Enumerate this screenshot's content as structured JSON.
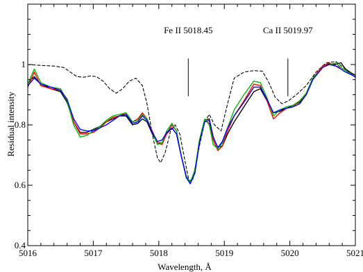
{
  "chart_data": {
    "type": "line",
    "title": "",
    "xlabel": "Wavelength, Å",
    "ylabel": "Residual intensity",
    "xlim": [
      5016,
      5021
    ],
    "ylim": [
      0.4,
      1.2
    ],
    "grid": false,
    "x_ticks": [
      5016,
      5017,
      5018,
      5019,
      5020,
      5021
    ],
    "x_tick_labels": [
      "5016",
      "5017",
      "5018",
      "5019",
      "5020",
      "5021"
    ],
    "y_ticks": [
      0.4,
      0.6,
      0.8,
      1.0
    ],
    "y_tick_labels": [
      "0.4",
      "0.6",
      "0.8",
      "1"
    ],
    "annotations": [
      {
        "text": "Fe II 5018.45",
        "x": 5018.45,
        "y_top": 1.02,
        "y_bottom": 0.895
      },
      {
        "text": "Ca II 5019.97",
        "x": 5019.97,
        "y_top": 1.02,
        "y_bottom": 0.895
      }
    ],
    "series": [
      {
        "color": "#000000",
        "style": "dashed",
        "points": [
          [
            5016,
            1.0
          ],
          [
            5016.2,
            0.997
          ],
          [
            5016.4,
            0.995
          ],
          [
            5016.55,
            0.99
          ],
          [
            5016.65,
            0.975
          ],
          [
            5016.75,
            0.96
          ],
          [
            5016.85,
            0.958
          ],
          [
            5016.95,
            0.962
          ],
          [
            5017.05,
            0.96
          ],
          [
            5017.15,
            0.945
          ],
          [
            5017.25,
            0.92
          ],
          [
            5017.35,
            0.905
          ],
          [
            5017.45,
            0.92
          ],
          [
            5017.55,
            0.945
          ],
          [
            5017.65,
            0.955
          ],
          [
            5017.75,
            0.93
          ],
          [
            5017.82,
            0.87
          ],
          [
            5017.9,
            0.77
          ],
          [
            5017.98,
            0.69
          ],
          [
            5018.03,
            0.675
          ],
          [
            5018.1,
            0.71
          ],
          [
            5018.18,
            0.78
          ],
          [
            5018.25,
            0.8
          ],
          [
            5018.32,
            0.77
          ],
          [
            5018.4,
            0.68
          ],
          [
            5018.46,
            0.615
          ],
          [
            5018.52,
            0.62
          ],
          [
            5018.6,
            0.71
          ],
          [
            5018.7,
            0.81
          ],
          [
            5018.77,
            0.835
          ],
          [
            5018.85,
            0.8
          ],
          [
            5018.95,
            0.78
          ],
          [
            5019.05,
            0.87
          ],
          [
            5019.15,
            0.955
          ],
          [
            5019.3,
            0.975
          ],
          [
            5019.45,
            0.98
          ],
          [
            5019.58,
            0.978
          ],
          [
            5019.68,
            0.94
          ],
          [
            5019.78,
            0.89
          ],
          [
            5019.88,
            0.87
          ],
          [
            5019.98,
            0.88
          ],
          [
            5020.1,
            0.9
          ],
          [
            5020.25,
            0.93
          ],
          [
            5020.4,
            0.975
          ],
          [
            5020.55,
            1.005
          ],
          [
            5020.7,
            1.01
          ],
          [
            5020.82,
            0.99
          ],
          [
            5020.92,
            0.97
          ],
          [
            5021,
            0.96
          ]
        ]
      },
      {
        "color": "#000000",
        "style": "solid",
        "points": [
          [
            5016,
            0.94
          ],
          [
            5016.1,
            0.96
          ],
          [
            5016.2,
            0.935
          ],
          [
            5016.35,
            0.92
          ],
          [
            5016.5,
            0.91
          ],
          [
            5016.6,
            0.875
          ],
          [
            5016.7,
            0.81
          ],
          [
            5016.8,
            0.775
          ],
          [
            5016.9,
            0.775
          ],
          [
            5017.0,
            0.785
          ],
          [
            5017.1,
            0.795
          ],
          [
            5017.2,
            0.81
          ],
          [
            5017.3,
            0.82
          ],
          [
            5017.4,
            0.83
          ],
          [
            5017.5,
            0.83
          ],
          [
            5017.6,
            0.8
          ],
          [
            5017.68,
            0.805
          ],
          [
            5017.75,
            0.82
          ],
          [
            5017.82,
            0.81
          ],
          [
            5017.9,
            0.77
          ],
          [
            5017.98,
            0.74
          ],
          [
            5018.05,
            0.74
          ],
          [
            5018.12,
            0.77
          ],
          [
            5018.2,
            0.79
          ],
          [
            5018.27,
            0.77
          ],
          [
            5018.34,
            0.7
          ],
          [
            5018.42,
            0.63
          ],
          [
            5018.48,
            0.61
          ],
          [
            5018.55,
            0.64
          ],
          [
            5018.62,
            0.74
          ],
          [
            5018.7,
            0.815
          ],
          [
            5018.77,
            0.82
          ],
          [
            5018.83,
            0.76
          ],
          [
            5018.9,
            0.725
          ],
          [
            5018.97,
            0.73
          ],
          [
            5019.05,
            0.77
          ],
          [
            5019.15,
            0.81
          ],
          [
            5019.3,
            0.86
          ],
          [
            5019.45,
            0.91
          ],
          [
            5019.55,
            0.92
          ],
          [
            5019.65,
            0.88
          ],
          [
            5019.75,
            0.84
          ],
          [
            5019.85,
            0.845
          ],
          [
            5019.95,
            0.855
          ],
          [
            5020.05,
            0.865
          ],
          [
            5020.15,
            0.875
          ],
          [
            5020.25,
            0.9
          ],
          [
            5020.35,
            0.95
          ],
          [
            5020.5,
            0.995
          ],
          [
            5020.6,
            1.003
          ],
          [
            5020.7,
            1.0
          ],
          [
            5020.78,
            1.006
          ],
          [
            5020.85,
            0.985
          ],
          [
            5020.95,
            0.97
          ],
          [
            5021,
            0.965
          ]
        ]
      },
      {
        "color": "#ff0000",
        "style": "solid",
        "points": [
          [
            5016,
            0.925
          ],
          [
            5016.1,
            0.975
          ],
          [
            5016.2,
            0.93
          ],
          [
            5016.35,
            0.92
          ],
          [
            5016.5,
            0.915
          ],
          [
            5016.6,
            0.885
          ],
          [
            5016.7,
            0.81
          ],
          [
            5016.8,
            0.77
          ],
          [
            5016.9,
            0.77
          ],
          [
            5017.0,
            0.775
          ],
          [
            5017.1,
            0.79
          ],
          [
            5017.2,
            0.81
          ],
          [
            5017.3,
            0.825
          ],
          [
            5017.4,
            0.83
          ],
          [
            5017.5,
            0.84
          ],
          [
            5017.6,
            0.81
          ],
          [
            5017.68,
            0.82
          ],
          [
            5017.75,
            0.84
          ],
          [
            5017.82,
            0.82
          ],
          [
            5017.9,
            0.78
          ],
          [
            5017.98,
            0.74
          ],
          [
            5018.05,
            0.735
          ],
          [
            5018.12,
            0.77
          ],
          [
            5018.2,
            0.8
          ],
          [
            5018.27,
            0.78
          ],
          [
            5018.34,
            0.7
          ],
          [
            5018.42,
            0.63
          ],
          [
            5018.48,
            0.605
          ],
          [
            5018.55,
            0.64
          ],
          [
            5018.62,
            0.74
          ],
          [
            5018.7,
            0.815
          ],
          [
            5018.77,
            0.805
          ],
          [
            5018.83,
            0.75
          ],
          [
            5018.9,
            0.715
          ],
          [
            5018.97,
            0.73
          ],
          [
            5019.05,
            0.78
          ],
          [
            5019.15,
            0.83
          ],
          [
            5019.3,
            0.88
          ],
          [
            5019.45,
            0.935
          ],
          [
            5019.55,
            0.93
          ],
          [
            5019.65,
            0.88
          ],
          [
            5019.75,
            0.82
          ],
          [
            5019.85,
            0.84
          ],
          [
            5019.95,
            0.855
          ],
          [
            5020.05,
            0.86
          ],
          [
            5020.15,
            0.88
          ],
          [
            5020.25,
            0.9
          ],
          [
            5020.35,
            0.955
          ],
          [
            5020.5,
            0.995
          ],
          [
            5020.6,
            1.005
          ],
          [
            5020.7,
            0.995
          ],
          [
            5020.78,
            0.99
          ],
          [
            5020.85,
            0.98
          ],
          [
            5020.95,
            0.965
          ],
          [
            5021,
            0.96
          ]
        ]
      },
      {
        "color": "#00bb00",
        "style": "solid",
        "points": [
          [
            5016,
            0.935
          ],
          [
            5016.1,
            0.985
          ],
          [
            5016.2,
            0.94
          ],
          [
            5016.35,
            0.925
          ],
          [
            5016.5,
            0.92
          ],
          [
            5016.6,
            0.88
          ],
          [
            5016.7,
            0.8
          ],
          [
            5016.8,
            0.76
          ],
          [
            5016.9,
            0.765
          ],
          [
            5017.0,
            0.78
          ],
          [
            5017.1,
            0.795
          ],
          [
            5017.2,
            0.815
          ],
          [
            5017.3,
            0.83
          ],
          [
            5017.4,
            0.835
          ],
          [
            5017.5,
            0.84
          ],
          [
            5017.6,
            0.81
          ],
          [
            5017.68,
            0.815
          ],
          [
            5017.75,
            0.835
          ],
          [
            5017.82,
            0.82
          ],
          [
            5017.9,
            0.775
          ],
          [
            5017.98,
            0.735
          ],
          [
            5018.05,
            0.74
          ],
          [
            5018.12,
            0.78
          ],
          [
            5018.2,
            0.805
          ],
          [
            5018.27,
            0.78
          ],
          [
            5018.34,
            0.7
          ],
          [
            5018.42,
            0.63
          ],
          [
            5018.48,
            0.61
          ],
          [
            5018.55,
            0.65
          ],
          [
            5018.62,
            0.75
          ],
          [
            5018.7,
            0.82
          ],
          [
            5018.77,
            0.8
          ],
          [
            5018.83,
            0.735
          ],
          [
            5018.9,
            0.72
          ],
          [
            5018.97,
            0.74
          ],
          [
            5019.05,
            0.79
          ],
          [
            5019.15,
            0.85
          ],
          [
            5019.3,
            0.9
          ],
          [
            5019.45,
            0.945
          ],
          [
            5019.55,
            0.94
          ],
          [
            5019.65,
            0.89
          ],
          [
            5019.75,
            0.83
          ],
          [
            5019.85,
            0.85
          ],
          [
            5019.95,
            0.86
          ],
          [
            5020.05,
            0.865
          ],
          [
            5020.15,
            0.88
          ],
          [
            5020.25,
            0.905
          ],
          [
            5020.35,
            0.955
          ],
          [
            5020.5,
            0.99
          ],
          [
            5020.6,
            1.0
          ],
          [
            5020.7,
            1.005
          ],
          [
            5020.78,
            0.99
          ],
          [
            5020.85,
            0.98
          ],
          [
            5020.95,
            0.965
          ],
          [
            5021,
            0.96
          ]
        ]
      },
      {
        "color": "#0000ff",
        "style": "solid",
        "points": [
          [
            5016,
            0.93
          ],
          [
            5016.1,
            0.955
          ],
          [
            5016.2,
            0.935
          ],
          [
            5016.35,
            0.925
          ],
          [
            5016.5,
            0.915
          ],
          [
            5016.6,
            0.885
          ],
          [
            5016.7,
            0.82
          ],
          [
            5016.8,
            0.785
          ],
          [
            5016.9,
            0.78
          ],
          [
            5017.0,
            0.78
          ],
          [
            5017.1,
            0.79
          ],
          [
            5017.2,
            0.8
          ],
          [
            5017.3,
            0.815
          ],
          [
            5017.4,
            0.83
          ],
          [
            5017.5,
            0.835
          ],
          [
            5017.6,
            0.805
          ],
          [
            5017.68,
            0.81
          ],
          [
            5017.75,
            0.83
          ],
          [
            5017.82,
            0.815
          ],
          [
            5017.9,
            0.775
          ],
          [
            5017.98,
            0.745
          ],
          [
            5018.05,
            0.75
          ],
          [
            5018.12,
            0.775
          ],
          [
            5018.2,
            0.79
          ],
          [
            5018.27,
            0.77
          ],
          [
            5018.34,
            0.7
          ],
          [
            5018.42,
            0.625
          ],
          [
            5018.48,
            0.605
          ],
          [
            5018.55,
            0.64
          ],
          [
            5018.62,
            0.74
          ],
          [
            5018.7,
            0.81
          ],
          [
            5018.77,
            0.815
          ],
          [
            5018.83,
            0.76
          ],
          [
            5018.9,
            0.725
          ],
          [
            5018.97,
            0.745
          ],
          [
            5019.05,
            0.79
          ],
          [
            5019.15,
            0.83
          ],
          [
            5019.3,
            0.875
          ],
          [
            5019.45,
            0.925
          ],
          [
            5019.55,
            0.925
          ],
          [
            5019.65,
            0.885
          ],
          [
            5019.75,
            0.84
          ],
          [
            5019.85,
            0.85
          ],
          [
            5019.95,
            0.855
          ],
          [
            5020.05,
            0.86
          ],
          [
            5020.15,
            0.87
          ],
          [
            5020.25,
            0.9
          ],
          [
            5020.35,
            0.95
          ],
          [
            5020.5,
            0.99
          ],
          [
            5020.6,
            1.0
          ],
          [
            5020.7,
            0.995
          ],
          [
            5020.78,
            0.985
          ],
          [
            5020.85,
            0.975
          ],
          [
            5020.95,
            0.965
          ],
          [
            5021,
            0.958
          ]
        ]
      }
    ]
  }
}
